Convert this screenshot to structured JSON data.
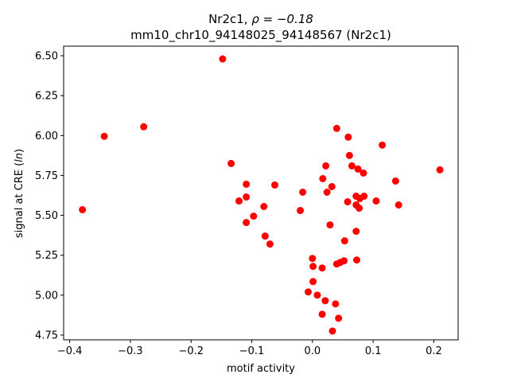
{
  "chart_data": {
    "type": "scatter",
    "title_line1_prefix": "Nr2c1, ",
    "title_line1_rho": "ρ = −0.18",
    "title_line2": "mm10_chr10_94148025_94148567 (Nr2c1)",
    "xlabel": "motif activity",
    "ylabel_prefix": "signal at CRE (",
    "ylabel_italic": "ln",
    "ylabel_suffix": ")",
    "xlim": [
      -0.41,
      0.24
    ],
    "ylim": [
      4.72,
      6.56
    ],
    "x_ticks": [
      -0.4,
      -0.3,
      -0.2,
      -0.1,
      0.0,
      0.1,
      0.2
    ],
    "x_tick_labels": [
      "−0.4",
      "−0.3",
      "−0.2",
      "−0.1",
      "0.0",
      "0.1",
      "0.2"
    ],
    "y_ticks": [
      4.75,
      5.0,
      5.25,
      5.5,
      5.75,
      6.0,
      6.25,
      6.5
    ],
    "y_tick_labels": [
      "4.75",
      "5.00",
      "5.25",
      "5.50",
      "5.75",
      "6.00",
      "6.25",
      "6.50"
    ],
    "point_color": "#ff0000",
    "grid": false,
    "points": [
      {
        "x": -0.148,
        "y": 6.48
      },
      {
        "x": -0.278,
        "y": 6.055
      },
      {
        "x": -0.343,
        "y": 5.995
      },
      {
        "x": -0.379,
        "y": 5.535
      },
      {
        "x": -0.134,
        "y": 5.825
      },
      {
        "x": -0.109,
        "y": 5.695
      },
      {
        "x": -0.109,
        "y": 5.615
      },
      {
        "x": -0.121,
        "y": 5.59
      },
      {
        "x": -0.062,
        "y": 5.69
      },
      {
        "x": -0.08,
        "y": 5.555
      },
      {
        "x": -0.097,
        "y": 5.495
      },
      {
        "x": -0.109,
        "y": 5.455
      },
      {
        "x": -0.078,
        "y": 5.37
      },
      {
        "x": -0.07,
        "y": 5.32
      },
      {
        "x": -0.016,
        "y": 5.645
      },
      {
        "x": -0.02,
        "y": 5.53
      },
      {
        "x": 0.04,
        "y": 6.045
      },
      {
        "x": 0.059,
        "y": 5.99
      },
      {
        "x": 0.115,
        "y": 5.94
      },
      {
        "x": 0.061,
        "y": 5.875
      },
      {
        "x": 0.022,
        "y": 5.81
      },
      {
        "x": 0.065,
        "y": 5.81
      },
      {
        "x": 0.075,
        "y": 5.79
      },
      {
        "x": 0.084,
        "y": 5.765
      },
      {
        "x": 0.017,
        "y": 5.73
      },
      {
        "x": 0.137,
        "y": 5.715
      },
      {
        "x": 0.21,
        "y": 5.785
      },
      {
        "x": 0.032,
        "y": 5.68
      },
      {
        "x": 0.024,
        "y": 5.645
      },
      {
        "x": 0.072,
        "y": 5.62
      },
      {
        "x": 0.085,
        "y": 5.62
      },
      {
        "x": 0.078,
        "y": 5.605
      },
      {
        "x": 0.058,
        "y": 5.585
      },
      {
        "x": 0.105,
        "y": 5.59
      },
      {
        "x": 0.072,
        "y": 5.565
      },
      {
        "x": 0.077,
        "y": 5.545
      },
      {
        "x": 0.142,
        "y": 5.565
      },
      {
        "x": 0.029,
        "y": 5.44
      },
      {
        "x": 0.072,
        "y": 5.4
      },
      {
        "x": 0.053,
        "y": 5.34
      },
      {
        "x": 0.0,
        "y": 5.23
      },
      {
        "x": 0.073,
        "y": 5.22
      },
      {
        "x": 0.052,
        "y": 5.215
      },
      {
        "x": 0.046,
        "y": 5.205
      },
      {
        "x": 0.04,
        "y": 5.195
      },
      {
        "x": 0.001,
        "y": 5.18
      },
      {
        "x": 0.016,
        "y": 5.17
      },
      {
        "x": 0.001,
        "y": 5.085
      },
      {
        "x": -0.007,
        "y": 5.02
      },
      {
        "x": 0.008,
        "y": 5.0
      },
      {
        "x": 0.021,
        "y": 4.965
      },
      {
        "x": 0.038,
        "y": 4.945
      },
      {
        "x": 0.016,
        "y": 4.88
      },
      {
        "x": 0.043,
        "y": 4.855
      },
      {
        "x": 0.033,
        "y": 4.775
      }
    ]
  }
}
